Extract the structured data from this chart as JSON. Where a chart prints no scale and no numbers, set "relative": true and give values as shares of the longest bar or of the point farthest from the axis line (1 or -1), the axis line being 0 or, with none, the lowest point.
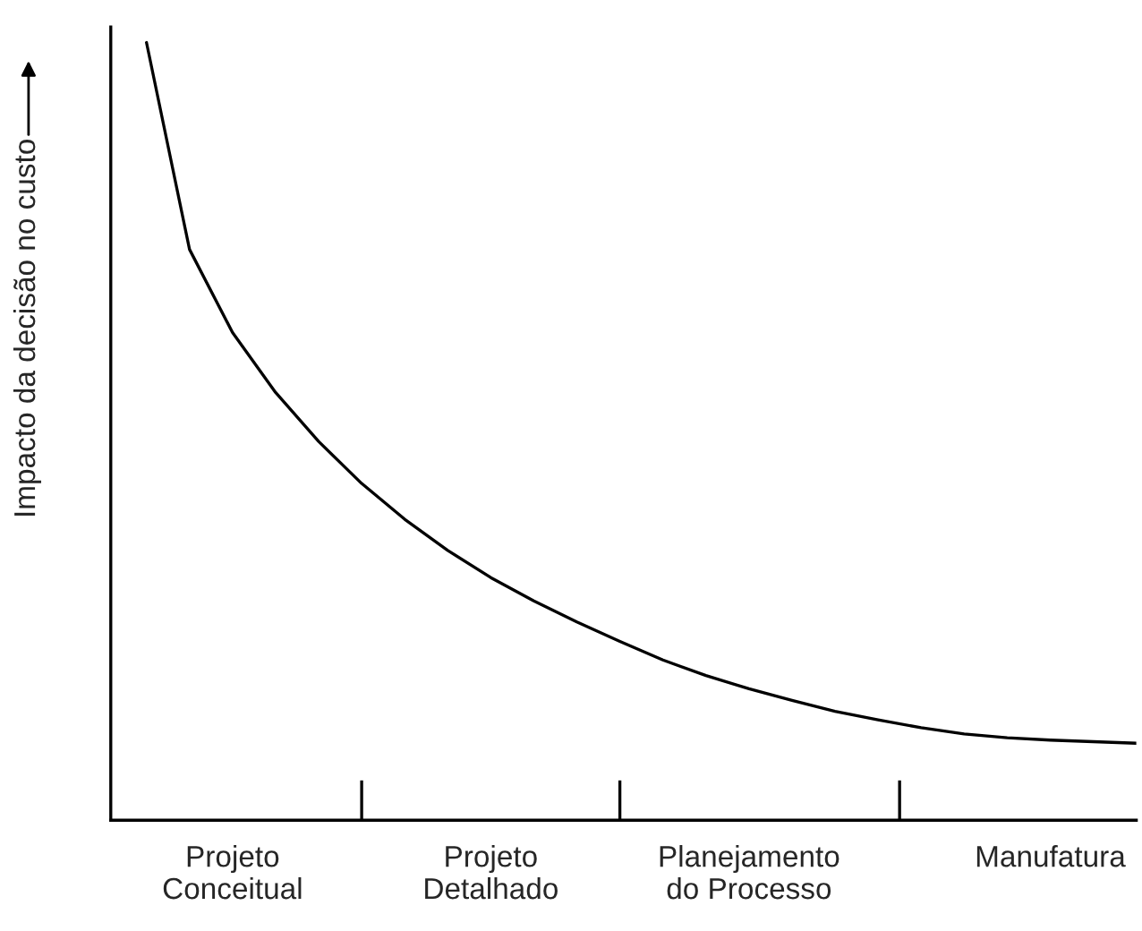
{
  "chart_data": {
    "type": "line",
    "relative": true,
    "ylabel": "Impacto da decisão no custo",
    "categories": [
      null,
      null,
      "Projeto\nConceitual",
      null,
      null,
      null,
      null,
      null,
      "Projeto\nDetalhado",
      null,
      null,
      null,
      null,
      null,
      "Planejamento\ndo Processo",
      null,
      null,
      null,
      null,
      null,
      null,
      "Manufatura",
      null,
      null
    ],
    "series": [
      {
        "color": "#000000",
        "values": [
          1.0,
          0.734,
          0.627,
          0.55,
          0.487,
          0.433,
          0.387,
          0.347,
          0.312,
          0.282,
          0.255,
          0.23,
          0.206,
          0.186,
          0.169,
          0.154,
          0.14,
          0.129,
          0.119,
          0.111,
          0.106,
          0.103,
          0.101,
          0.099
        ]
      }
    ],
    "grid": false,
    "legend": false,
    "marker": "none",
    "line_style": "solid",
    "tick_labels": "x"
  }
}
